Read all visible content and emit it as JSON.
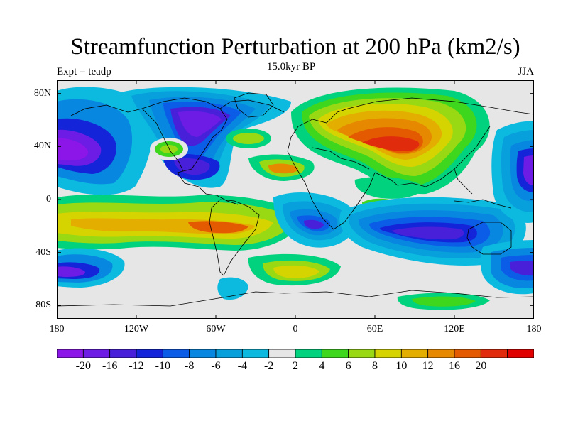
{
  "title": "Streamfunction Perturbation at 200 hPa (km2/s)",
  "left_label": "Expt = teadp",
  "center_label": "15.0kyr BP",
  "right_label": "JJA",
  "map": {
    "projection": "cylindrical-equidistant",
    "lon_range": [
      -180,
      180
    ],
    "lat_range": [
      -90,
      90
    ],
    "lat_ticks": [
      {
        "label": "80N",
        "lat": 80
      },
      {
        "label": "40N",
        "lat": 40
      },
      {
        "label": "0",
        "lat": 0
      },
      {
        "label": "40S",
        "lat": -40
      },
      {
        "label": "80S",
        "lat": -80
      }
    ],
    "lon_ticks": [
      {
        "label": "180",
        "lon": -180
      },
      {
        "label": "120W",
        "lon": -120
      },
      {
        "label": "60W",
        "lon": -60
      },
      {
        "label": "0",
        "lon": 0
      },
      {
        "label": "60E",
        "lon": 60
      },
      {
        "label": "120E",
        "lon": 120
      },
      {
        "label": "180",
        "lon": 180
      }
    ],
    "field_features": [
      {
        "name": "negative-center-north-pacific",
        "lon": -170,
        "lat": 40,
        "value": -16
      },
      {
        "name": "negative-center-north-america",
        "lon": -95,
        "lat": 60,
        "value": -18
      },
      {
        "name": "negative-center-gulf-of-mexico",
        "lon": -80,
        "lat": 25,
        "value": -10
      },
      {
        "name": "positive-center-asia",
        "lon": 80,
        "lat": 35,
        "value": 20
      },
      {
        "name": "positive-center-sahara",
        "lon": 10,
        "lat": 30,
        "value": 10
      },
      {
        "name": "positive-center-east-pacific-south",
        "lon": -60,
        "lat": -20,
        "value": 14
      },
      {
        "name": "positive-center-south-pacific",
        "lon": -150,
        "lat": -22,
        "value": 10
      },
      {
        "name": "negative-center-south-atlantic",
        "lon": 10,
        "lat": -25,
        "value": -14
      },
      {
        "name": "negative-center-indian-ocean",
        "lon": 90,
        "lat": -30,
        "value": -18
      },
      {
        "name": "negative-center-southwest-pacific",
        "lon": 170,
        "lat": -55,
        "value": -14
      },
      {
        "name": "positive-center-southern-ocean",
        "lon": -10,
        "lat": -55,
        "value": 8
      },
      {
        "name": "negative-center-west-pacific",
        "lon": 175,
        "lat": 35,
        "value": -14
      }
    ]
  },
  "colorbar": {
    "labels": [
      "-20",
      "-16",
      "-12",
      "-10",
      "-8",
      "-6",
      "-4",
      "-2",
      "2",
      "4",
      "6",
      "8",
      "10",
      "12",
      "16",
      "20"
    ],
    "colors": [
      "#8c16e8",
      "#6c1ce4",
      "#4820da",
      "#1424d8",
      "#0b5ce6",
      "#0887e0",
      "#08a0dc",
      "#0cbadf",
      "#e6e6e6",
      "#00d27d",
      "#3fd61e",
      "#98d914",
      "#d6d400",
      "#e3ae00",
      "#e68800",
      "#e35a00",
      "#e02c0c",
      "#e00000"
    ]
  }
}
